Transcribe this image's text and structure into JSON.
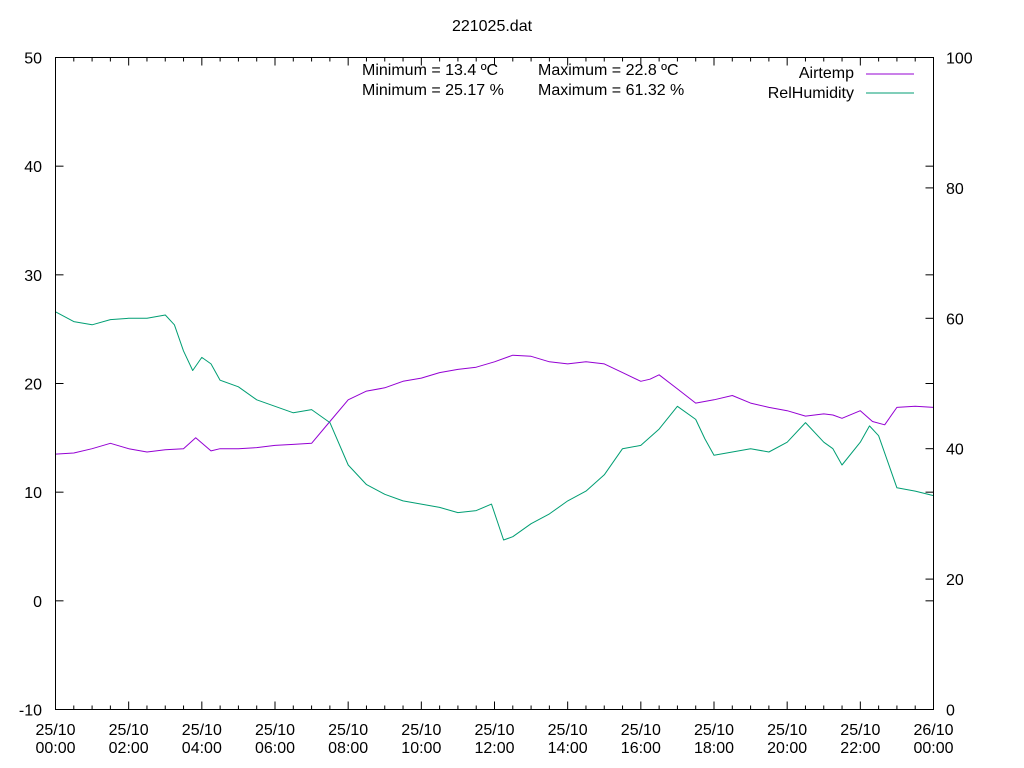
{
  "chart_data": {
    "type": "line",
    "title": "221025.dat",
    "xlabel": "",
    "ylabel": "",
    "y2label": "",
    "ylim": [
      -10,
      50
    ],
    "y2lim": [
      0,
      100
    ],
    "xlim_hours": [
      0,
      24
    ],
    "grid": false,
    "legend_position": "top-right",
    "x_ticks": [
      {
        "date": "25/10",
        "time": "00:00"
      },
      {
        "date": "25/10",
        "time": "02:00"
      },
      {
        "date": "25/10",
        "time": "04:00"
      },
      {
        "date": "25/10",
        "time": "06:00"
      },
      {
        "date": "25/10",
        "time": "08:00"
      },
      {
        "date": "25/10",
        "time": "10:00"
      },
      {
        "date": "25/10",
        "time": "12:00"
      },
      {
        "date": "25/10",
        "time": "14:00"
      },
      {
        "date": "25/10",
        "time": "16:00"
      },
      {
        "date": "25/10",
        "time": "18:00"
      },
      {
        "date": "25/10",
        "time": "20:00"
      },
      {
        "date": "25/10",
        "time": "22:00"
      },
      {
        "date": "26/10",
        "time": "00:00"
      }
    ],
    "y_ticks": [
      "-10",
      "0",
      "10",
      "20",
      "30",
      "40",
      "50"
    ],
    "y2_ticks": [
      "0",
      "20",
      "40",
      "60",
      "80",
      "100"
    ],
    "annotations": [
      "Minimum = 13.4 ºC",
      "Maximum = 22.8 ºC",
      "Minimum = 25.17 %",
      "Maximum = 61.32 %"
    ],
    "series": [
      {
        "name": "Airtemp",
        "axis": "left",
        "color": "#9400d3",
        "x": [
          "25/10 00:00",
          "25/10 00:30",
          "25/10 01:00",
          "25/10 01:30",
          "25/10 02:00",
          "25/10 02:30",
          "25/10 03:00",
          "25/10 03:30",
          "25/10 03:50",
          "25/10 04:15",
          "25/10 04:30",
          "25/10 05:00",
          "25/10 05:30",
          "25/10 06:00",
          "25/10 06:30",
          "25/10 07:00",
          "25/10 07:30",
          "25/10 08:00",
          "25/10 08:30",
          "25/10 09:00",
          "25/10 09:30",
          "25/10 10:00",
          "25/10 10:30",
          "25/10 11:00",
          "25/10 11:30",
          "25/10 12:00",
          "25/10 12:30",
          "25/10 13:00",
          "25/10 13:30",
          "25/10 14:00",
          "25/10 14:30",
          "25/10 15:00",
          "25/10 15:30",
          "25/10 16:00",
          "25/10 16:15",
          "25/10 16:30",
          "25/10 17:00",
          "25/10 17:30",
          "25/10 18:00",
          "25/10 18:30",
          "25/10 19:00",
          "25/10 19:30",
          "25/10 20:00",
          "25/10 20:30",
          "25/10 21:00",
          "25/10 21:15",
          "25/10 21:30",
          "25/10 22:00",
          "25/10 22:20",
          "25/10 22:40",
          "25/10 23:00",
          "25/10 23:30",
          "26/10 00:00"
        ],
        "values": [
          13.5,
          13.6,
          14.0,
          14.5,
          14.0,
          13.7,
          13.9,
          14.0,
          15.0,
          13.8,
          14.0,
          14.0,
          14.1,
          14.3,
          14.4,
          14.5,
          16.5,
          18.5,
          19.3,
          19.6,
          20.2,
          20.5,
          21.0,
          21.3,
          21.5,
          22.0,
          22.6,
          22.5,
          22.0,
          21.8,
          22.0,
          21.8,
          21.0,
          20.2,
          20.4,
          20.8,
          19.5,
          18.2,
          18.5,
          18.9,
          18.2,
          17.8,
          17.5,
          17.0,
          17.2,
          17.1,
          16.8,
          17.5,
          16.5,
          16.2,
          17.8,
          17.9,
          17.8
        ]
      },
      {
        "name": "RelHumidity",
        "axis": "right",
        "color": "#009e73",
        "x": [
          "25/10 00:00",
          "25/10 00:30",
          "25/10 01:00",
          "25/10 01:30",
          "25/10 02:00",
          "25/10 02:30",
          "25/10 03:00",
          "25/10 03:15",
          "25/10 03:30",
          "25/10 03:45",
          "25/10 04:00",
          "25/10 04:15",
          "25/10 04:30",
          "25/10 05:00",
          "25/10 05:30",
          "25/10 06:00",
          "25/10 06:30",
          "25/10 07:00",
          "25/10 07:30",
          "25/10 08:00",
          "25/10 08:30",
          "25/10 09:00",
          "25/10 09:30",
          "25/10 10:00",
          "25/10 10:30",
          "25/10 11:00",
          "25/10 11:30",
          "25/10 11:55",
          "25/10 12:15",
          "25/10 12:30",
          "25/10 13:00",
          "25/10 13:30",
          "25/10 14:00",
          "25/10 14:30",
          "25/10 15:00",
          "25/10 15:30",
          "25/10 16:00",
          "25/10 16:30",
          "25/10 17:00",
          "25/10 17:30",
          "25/10 17:45",
          "25/10 18:00",
          "25/10 18:30",
          "25/10 19:00",
          "25/10 19:30",
          "25/10 20:00",
          "25/10 20:30",
          "25/10 21:00",
          "25/10 21:15",
          "25/10 21:30",
          "25/10 22:00",
          "25/10 22:15",
          "25/10 22:30",
          "25/10 23:00",
          "25/10 23:30",
          "26/10 00:00"
        ],
        "values": [
          61.0,
          59.5,
          59.0,
          59.8,
          60.0,
          60.0,
          60.5,
          59.0,
          55.0,
          52.0,
          54.0,
          53.0,
          50.5,
          49.5,
          47.5,
          46.5,
          45.5,
          46.0,
          44.0,
          37.5,
          34.5,
          33.0,
          32.0,
          31.5,
          31.0,
          30.2,
          30.5,
          31.5,
          26.0,
          26.5,
          28.5,
          30.0,
          32.0,
          33.5,
          36.0,
          40.0,
          40.5,
          43.0,
          46.5,
          44.5,
          41.5,
          39.0,
          39.5,
          40.0,
          39.5,
          41.0,
          44.0,
          41.0,
          40.0,
          37.5,
          41.0,
          43.5,
          42.0,
          34.0,
          33.5,
          32.8
        ]
      }
    ]
  }
}
